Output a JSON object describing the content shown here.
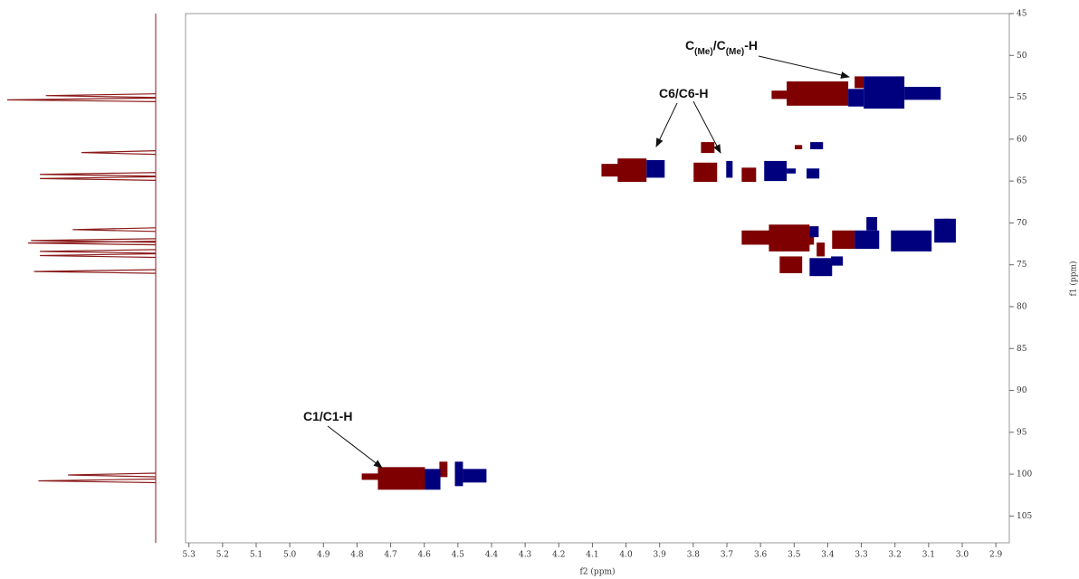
{
  "chart_data": {
    "type": "hsqc",
    "xlabel": "f2 (ppm)",
    "ylabel": "f1 (ppm)",
    "xlim": [
      5.31,
      2.86
    ],
    "ylim": [
      45,
      108.2
    ],
    "xticks": [
      5.3,
      5.2,
      5.1,
      {
        "value": 5,
        "label": "5.0"
      },
      4.9,
      4.8,
      4.7,
      4.6,
      4.5,
      4.4,
      4.3,
      4.2,
      4.1,
      {
        "value": 4,
        "label": "4.0"
      },
      3.9,
      3.8,
      3.7,
      3.6,
      3.5,
      3.4,
      3.3,
      3.2,
      3.1,
      {
        "value": 3,
        "label": "3.0"
      },
      2.9
    ],
    "yticks": [
      45,
      50,
      55,
      60,
      65,
      70,
      75,
      80,
      85,
      90,
      95,
      100,
      105
    ],
    "series": [
      {
        "color": "#7f0000",
        "x0": [
          4.786,
          4.738,
          4.555,
          4.073,
          4.025,
          3.799,
          3.777,
          3.656,
          3.498,
          3.567,
          3.522,
          3.32,
          3.656,
          3.575,
          3.543,
          3.433,
          3.387,
          3.056
        ],
        "x1": [
          4.598,
          4.598,
          4.531,
          3.946,
          3.939,
          3.729,
          3.737,
          3.613,
          3.476,
          3.441,
          3.339,
          3.293,
          3.441,
          3.454,
          3.476,
          3.409,
          3.32,
          3.037
        ],
        "y0": [
          99.92,
          99.16,
          98.51,
          62.95,
          62.3,
          62.8,
          60.35,
          63.4,
          60.7,
          54.2,
          53.1,
          52.5,
          70.9,
          70.2,
          74.0,
          72.35,
          70.9,
          69.5
        ],
        "y1": [
          100.68,
          101.86,
          100.35,
          64.46,
          65.1,
          65.1,
          61.65,
          65.1,
          61.2,
          55.2,
          56.0,
          53.9,
          72.6,
          73.4,
          76.0,
          74.0,
          73.1,
          70.6
        ]
      },
      {
        "color": "#00007f",
        "x0": [
          4.598,
          4.509,
          4.485,
          3.939,
          3.702,
          3.589,
          3.522,
          3.463,
          3.452,
          3.339,
          3.293,
          3.172,
          3.454,
          3.454,
          3.39,
          3.32,
          3.285,
          3.212,
          3.083
        ],
        "x1": [
          4.552,
          4.485,
          4.415,
          3.885,
          3.683,
          3.522,
          3.495,
          3.425,
          3.414,
          3.293,
          3.172,
          3.064,
          3.427,
          3.387,
          3.355,
          3.247,
          3.253,
          3.091,
          3.019
        ],
        "y0": [
          99.38,
          98.51,
          99.38,
          62.5,
          62.6,
          62.6,
          63.5,
          63.5,
          60.35,
          54.0,
          52.5,
          53.75,
          70.4,
          74.2,
          74.0,
          70.9,
          69.3,
          70.9,
          69.5
        ],
        "y1": [
          101.86,
          101.43,
          101.0,
          64.6,
          64.6,
          65.0,
          64.1,
          64.7,
          61.2,
          56.1,
          56.35,
          55.3,
          71.7,
          76.35,
          75.1,
          73.1,
          70.9,
          73.4,
          72.35
        ]
      }
    ],
    "projection": {
      "color": "#8b1a1a",
      "y": [
        54.8,
        55.3,
        61.6,
        64.2,
        64.7,
        70.8,
        72.1,
        72.4,
        73.4,
        73.9,
        75.8,
        100.1,
        100.8
      ],
      "intensity": [
        0.74,
        1.0,
        0.5,
        0.78,
        0.78,
        0.56,
        0.84,
        0.86,
        0.78,
        0.78,
        0.82,
        0.59,
        0.79
      ]
    },
    "annotations": [
      {
        "parts": [
          "C",
          "(Me)",
          "/C",
          "(Me)",
          "-H"
        ]
      },
      {
        "text": "C6/C6-H"
      },
      {
        "text": "C1/C1-H"
      }
    ]
  }
}
